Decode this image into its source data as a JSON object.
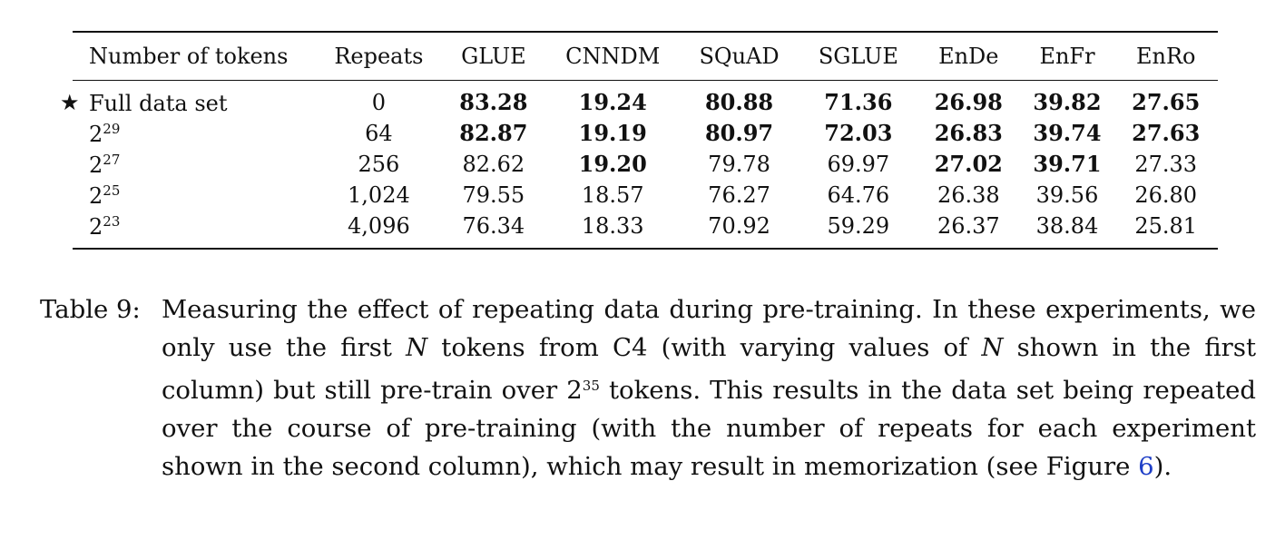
{
  "table": {
    "headers": [
      "Number of tokens",
      "Repeats",
      "GLUE",
      "CNNDM",
      "SQuAD",
      "SGLUE",
      "EnDe",
      "EnFr",
      "EnRo"
    ],
    "rows": [
      {
        "label": "Full data set",
        "star": "★",
        "base": "",
        "exp": "",
        "repeats": "0",
        "values": [
          "83.28",
          "19.24",
          "80.88",
          "71.36",
          "26.98",
          "39.82",
          "27.65"
        ],
        "bold": [
          true,
          true,
          true,
          true,
          true,
          true,
          true
        ]
      },
      {
        "label": "",
        "star": "",
        "base": "2",
        "exp": "29",
        "repeats": "64",
        "values": [
          "82.87",
          "19.19",
          "80.97",
          "72.03",
          "26.83",
          "39.74",
          "27.63"
        ],
        "bold": [
          true,
          true,
          true,
          true,
          true,
          true,
          true
        ]
      },
      {
        "label": "",
        "star": "",
        "base": "2",
        "exp": "27",
        "repeats": "256",
        "values": [
          "82.62",
          "19.20",
          "79.78",
          "69.97",
          "27.02",
          "39.71",
          "27.33"
        ],
        "bold": [
          false,
          true,
          false,
          false,
          true,
          true,
          false
        ]
      },
      {
        "label": "",
        "star": "",
        "base": "2",
        "exp": "25",
        "repeats": "1,024",
        "values": [
          "79.55",
          "18.57",
          "76.27",
          "64.76",
          "26.38",
          "39.56",
          "26.80"
        ],
        "bold": [
          false,
          false,
          false,
          false,
          false,
          false,
          false
        ]
      },
      {
        "label": "",
        "star": "",
        "base": "2",
        "exp": "23",
        "repeats": "4,096",
        "values": [
          "76.34",
          "18.33",
          "70.92",
          "59.29",
          "26.37",
          "38.84",
          "25.81"
        ],
        "bold": [
          false,
          false,
          false,
          false,
          false,
          false,
          false
        ]
      }
    ]
  },
  "caption": {
    "label": "Table 9:",
    "t1": "Measuring the effect of repeating data during pre-training. In these experiments, we only use the first ",
    "n1": "N",
    "t2": " tokens from C4 (with varying values of ",
    "n2": "N",
    "t3": " shown in the first column) but still pre-train over ",
    "pow_base": "2",
    "pow_exp": "35",
    "t4": " tokens. This results in the data set being repeated over the course of pre-training (with the number of repeats for each experiment shown in the second column), which may result in memorization (see Figure ",
    "ref": "6",
    "t5": ")."
  },
  "colors": {
    "text": "#111111",
    "link": "#1f3fc7"
  }
}
